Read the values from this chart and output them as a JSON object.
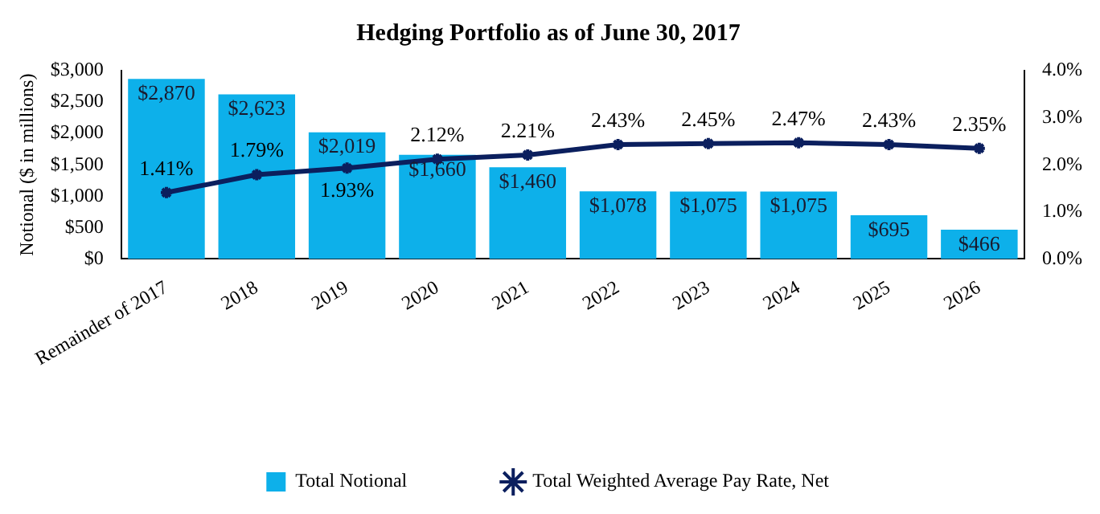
{
  "chart_data": {
    "type": "bar",
    "title": "Hedging Portfolio as of June 30, 2017",
    "ylabel": "Notional ($ in millions)",
    "categories": [
      "Remainder of 2017",
      "2018",
      "2019",
      "2020",
      "2021",
      "2022",
      "2023",
      "2024",
      "2025",
      "2026"
    ],
    "series": [
      {
        "name": "Total Notional",
        "color": "#0db0ea",
        "values": [
          2870,
          2623,
          2019,
          1660,
          1460,
          1078,
          1075,
          1075,
          695,
          466
        ],
        "value_labels": [
          "$2,870",
          "$2,623",
          "$2,019",
          "$1,660",
          "$1,460",
          "$1,078",
          "$1,075",
          "$1,075",
          "$695",
          "$466"
        ]
      },
      {
        "name": "Total Weighted Average Pay Rate, Net",
        "type": "line",
        "axis": "y2",
        "color": "#0b1f5e",
        "marker": "cross",
        "values": [
          1.41,
          1.79,
          1.93,
          2.12,
          2.21,
          2.43,
          2.45,
          2.47,
          2.43,
          2.35
        ],
        "value_labels": [
          "1.41%",
          "1.79%",
          "1.93%",
          "2.12%",
          "2.21%",
          "2.43%",
          "2.45%",
          "2.47%",
          "2.43%",
          "2.35%"
        ]
      }
    ],
    "ylim": [
      0,
      3000
    ],
    "yticks": [
      {
        "value": 0,
        "label": "$0"
      },
      {
        "value": 500,
        "label": "$500"
      },
      {
        "value": 1000,
        "label": "$1,000"
      },
      {
        "value": 1500,
        "label": "$1,500"
      },
      {
        "value": 2000,
        "label": "$2,000"
      },
      {
        "value": 2500,
        "label": "$2,500"
      },
      {
        "value": 3000,
        "label": "$3,000"
      }
    ],
    "y2lim": [
      0,
      4
    ],
    "y2ticks": [
      {
        "value": 0,
        "label": "0.0%"
      },
      {
        "value": 1,
        "label": "1.0%"
      },
      {
        "value": 2,
        "label": "2.0%"
      },
      {
        "value": 3,
        "label": "3.0%"
      },
      {
        "value": 4,
        "label": "4.0%"
      }
    ],
    "grid": false,
    "legend": "bottom"
  }
}
